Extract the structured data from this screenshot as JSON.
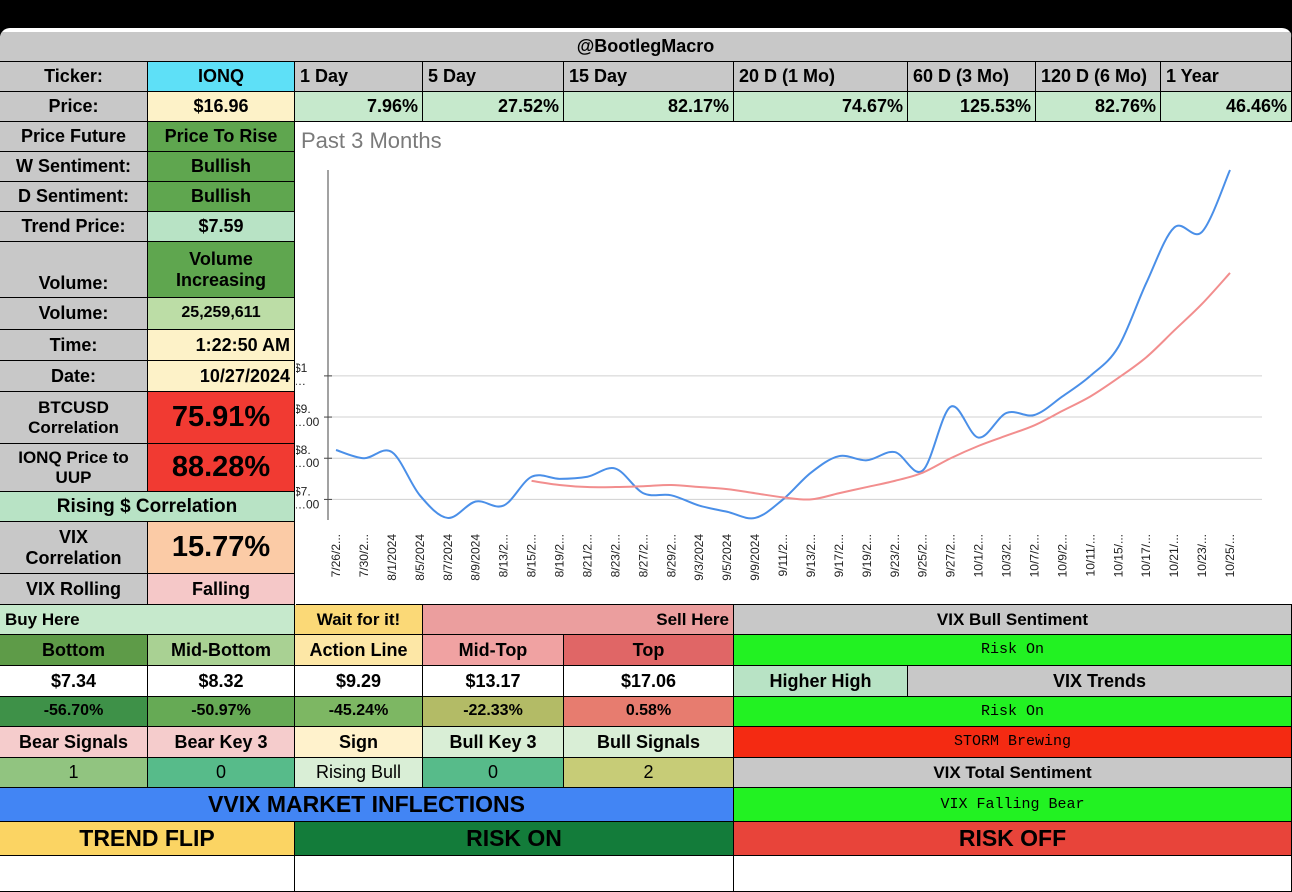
{
  "header": {
    "title": "@BootlegMacro"
  },
  "ticker": {
    "label": "Ticker:",
    "value": "IONQ"
  },
  "periods": [
    "1 Day",
    "5 Day",
    "15 Day",
    "20 D (1 Mo)",
    "60 D (3 Mo)",
    "120 D (6 Mo)",
    "1 Year"
  ],
  "price": {
    "label": "Price:",
    "value": "$16.96"
  },
  "returns": [
    "7.96%",
    "27.52%",
    "82.17%",
    "74.67%",
    "125.53%",
    "82.76%",
    "46.46%"
  ],
  "left_panel": {
    "price_future": {
      "label": "Price Future",
      "value": "Price To Rise"
    },
    "w_sentiment": {
      "label": "W Sentiment:",
      "value": "Bullish"
    },
    "d_sentiment": {
      "label": "D Sentiment:",
      "value": "Bullish"
    },
    "trend_price": {
      "label": "Trend Price:",
      "value": "$7.59"
    },
    "volume_trend": {
      "label": "Volume:",
      "value_line1": "Volume",
      "value_line2": "Increasing"
    },
    "volume": {
      "label": "Volume:",
      "value": "25,259,611"
    },
    "time": {
      "label": "Time:",
      "value": "1:22:50 AM"
    },
    "date": {
      "label": "Date:",
      "value": "10/27/2024"
    },
    "btc_corr": {
      "label_line1": "BTCUSD",
      "label_line2": "Correlation",
      "value": "75.91%"
    },
    "uup_corr": {
      "label_line1": "IONQ Price to",
      "label_line2": "UUP",
      "value": "88.28%"
    },
    "rising_corr": {
      "label": "Rising $ Correlation"
    },
    "vix_corr": {
      "label_line1": "VIX",
      "label_line2": "Correlation",
      "value": "15.77%"
    },
    "vix_rolling": {
      "label": "VIX Rolling",
      "value": "Falling"
    }
  },
  "chart_data": {
    "type": "line",
    "title": "Past 3 Months",
    "x": [
      "7/26/2...",
      "7/30/2...",
      "8/1/2024",
      "8/5/2024",
      "8/7/2024",
      "8/9/2024",
      "8/13/2...",
      "8/15/2...",
      "8/19/2...",
      "8/21/2...",
      "8/23/2...",
      "8/27/2...",
      "8/29/2...",
      "9/3/2024",
      "9/5/2024",
      "9/9/2024",
      "9/11/2...",
      "9/13/2...",
      "9/17/2...",
      "9/19/2...",
      "9/23/2...",
      "9/25/2...",
      "9/27/2...",
      "10/1/2...",
      "10/3/2...",
      "10/7/2...",
      "10/9/2...",
      "10/11/...",
      "10/15/...",
      "10/17/...",
      "10/21/...",
      "10/23/...",
      "10/25/..."
    ],
    "y_tick_labels": [
      "$1…",
      "$9.…00",
      "$8.…00",
      "$7.…00"
    ],
    "series": [
      {
        "color": "#4a8fe8",
        "values": [
          8.2,
          8.0,
          8.15,
          7.1,
          6.55,
          6.95,
          6.85,
          7.55,
          7.5,
          7.55,
          7.75,
          7.15,
          7.1,
          6.85,
          6.7,
          6.55,
          7.0,
          7.65,
          8.05,
          7.95,
          8.15,
          7.7,
          9.25,
          8.5,
          9.1,
          9.05,
          9.5,
          10.0,
          10.7,
          12.25,
          13.6,
          13.5,
          15.0
        ]
      },
      {
        "color": "#f28e8e",
        "values": [
          null,
          null,
          null,
          null,
          null,
          null,
          null,
          7.45,
          7.35,
          7.3,
          7.3,
          7.32,
          7.35,
          7.3,
          7.25,
          7.15,
          7.05,
          7.0,
          7.15,
          7.3,
          7.45,
          7.65,
          8.0,
          8.3,
          8.55,
          8.8,
          9.15,
          9.5,
          9.95,
          10.45,
          11.1,
          11.75,
          12.5
        ]
      }
    ],
    "ylim": [
      6.5,
      15.0
    ],
    "grid": true
  },
  "levels": {
    "buy_here": "Buy Here",
    "wait": "Wait for it!",
    "sell_here": "Sell Here",
    "headers": [
      "Bottom",
      "Mid-Bottom",
      "Action Line",
      "Mid-Top",
      "Top"
    ],
    "prices": [
      "$7.34",
      "$8.32",
      "$9.29",
      "$13.17",
      "$17.06"
    ],
    "pcts": [
      "-56.70%",
      "-50.97%",
      "-45.24%",
      "-22.33%",
      "0.58%"
    ]
  },
  "signals": {
    "headers": [
      "Bear Signals",
      "Bear Key 3",
      "Sign",
      "Bull Key 3",
      "Bull Signals"
    ],
    "values": [
      "1",
      "0",
      "Rising Bull",
      "0",
      "2"
    ]
  },
  "vix": {
    "bull_sentiment": "VIX Bull Sentiment",
    "risk_on_1": "Risk On",
    "higher_high": "Higher High",
    "vix_trends": "VIX Trends",
    "risk_on_2": "Risk On",
    "storm": "STORM Brewing",
    "total_sentiment": "VIX Total Sentiment",
    "falling_bear": "VIX Falling Bear"
  },
  "vvix": {
    "title": "VVIX MARKET INFLECTIONS",
    "trend_flip": "TREND FLIP",
    "risk_on": "RISK ON",
    "risk_off": "RISK OFF"
  },
  "colors": {
    "accent_cyan": "#5ee0f7",
    "risk_on_green": "#22f222",
    "risk_off_red": "#e8443a",
    "vvix_blue": "#4285f4",
    "price_line": "#4a8fe8",
    "trend_line": "#f28e8e"
  }
}
